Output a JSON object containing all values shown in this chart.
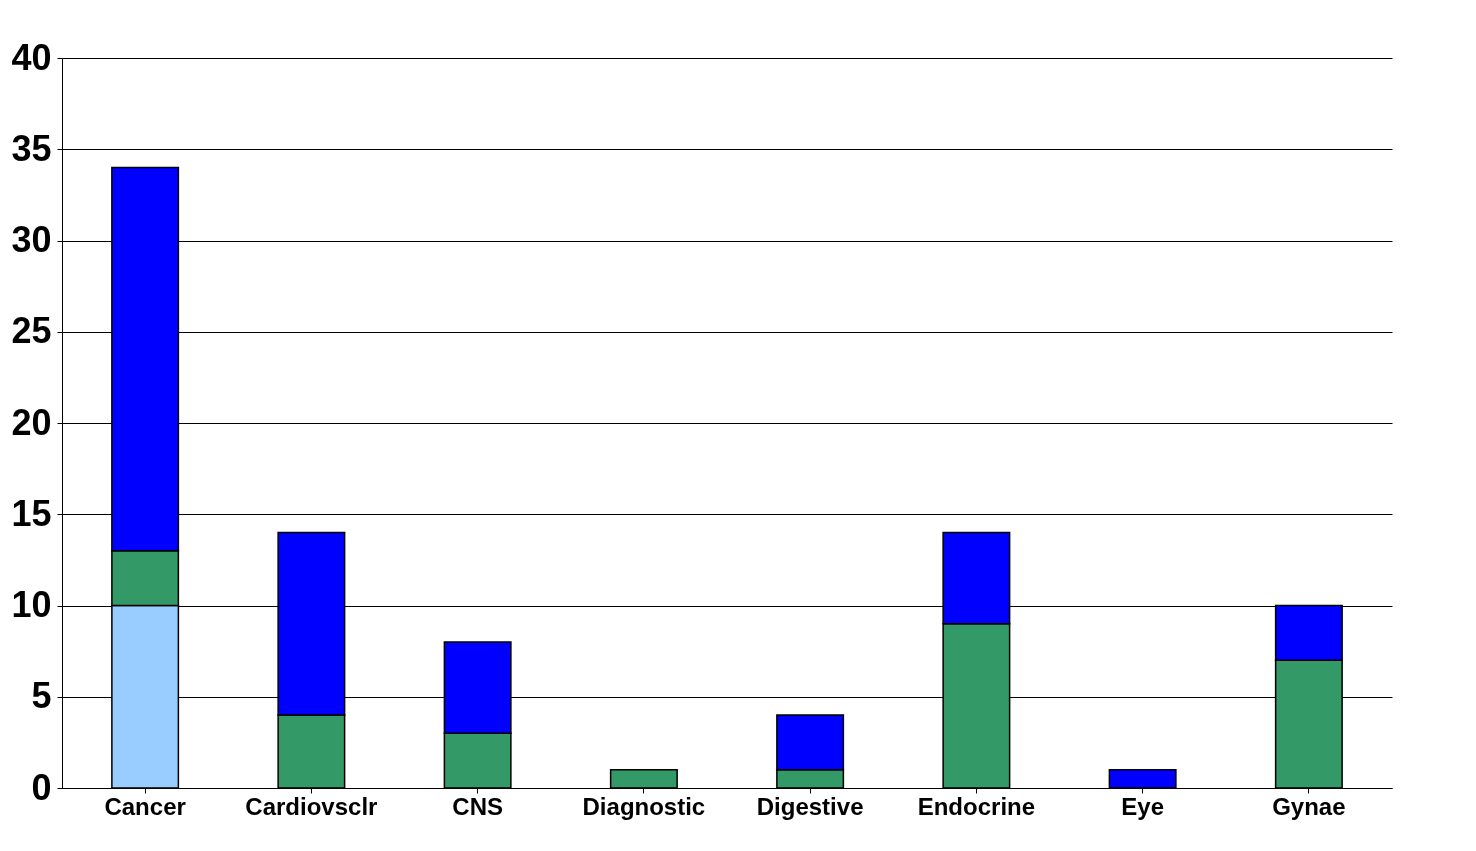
{
  "chart_data": {
    "type": "bar",
    "stacked": true,
    "categories": [
      "Cancer",
      "Cardiovsclr",
      "CNS",
      "Diagnostic",
      "Digestive",
      "Endocrine",
      "Eye",
      "Gynae"
    ],
    "series": [
      {
        "color": "#99ccff",
        "values": [
          10,
          null,
          null,
          null,
          null,
          null,
          null,
          null
        ]
      },
      {
        "color": "#339966",
        "values": [
          3,
          4,
          3,
          1,
          1,
          9,
          null,
          7
        ]
      },
      {
        "color": "#0000ff",
        "values": [
          21,
          10,
          5,
          null,
          3,
          5,
          1,
          3
        ]
      }
    ],
    "ylim": [
      0,
      40
    ],
    "yticks": [
      0,
      5,
      10,
      15,
      20,
      25,
      30,
      35,
      40
    ],
    "grid": "y"
  }
}
